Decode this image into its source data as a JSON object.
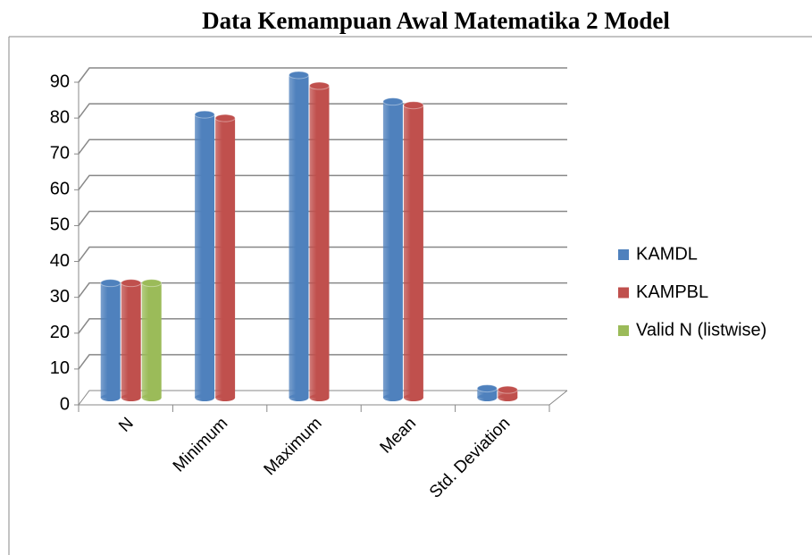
{
  "chart_data": {
    "type": "bar3d",
    "title": "Data Kemampuan Awal Matematika 2 Model",
    "categories": [
      "N",
      "Minimum",
      "Maximum",
      "Mean",
      "Std. Deviation"
    ],
    "series": [
      {
        "name": "KAMDL",
        "color": "#4f81bd",
        "values": [
          32,
          79,
          90,
          82.6,
          2.6
        ]
      },
      {
        "name": "KAMPBL",
        "color": "#c0504d",
        "values": [
          32,
          78,
          87,
          81.6,
          2.2
        ]
      },
      {
        "name": "Valid N (listwise)",
        "color": "#9bbb59",
        "values": [
          32,
          null,
          null,
          null,
          null
        ]
      }
    ],
    "ylim": [
      0,
      90
    ],
    "yticks": [
      0,
      10,
      20,
      30,
      40,
      50,
      60,
      70,
      80,
      90
    ],
    "grid": true,
    "legend": "right"
  }
}
